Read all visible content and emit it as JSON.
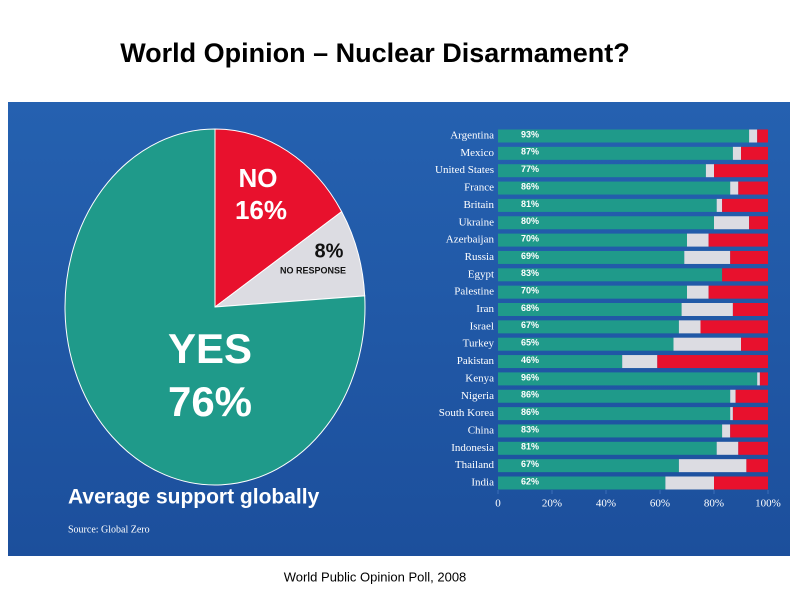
{
  "title": "World Opinion – Nuclear Disarmament?",
  "footer": "World Public Opinion Poll, 2008",
  "chart_data": [
    {
      "type": "pie",
      "title": "Average support globally",
      "source": "Source: Global Zero",
      "categories": [
        "NO",
        "NO RESPONSE",
        "YES"
      ],
      "values": [
        16,
        8,
        76
      ],
      "value_labels": [
        "16%",
        "8%",
        "76%"
      ],
      "colors": [
        "#e8112d",
        "#dcdce2",
        "#1f9a8a"
      ]
    },
    {
      "type": "stacked-barh",
      "categories": [
        "Argentina",
        "Mexico",
        "United States",
        "France",
        "Britain",
        "Ukraine",
        "Azerbaijan",
        "Russia",
        "Egypt",
        "Palestine",
        "Iran",
        "Israel",
        "Turkey",
        "Pakistan",
        "Kenya",
        "Nigeria",
        "South Korea",
        "China",
        "Indonesia",
        "Thailand",
        "India"
      ],
      "series": [
        {
          "color": "#1f9a8a",
          "values": [
            93,
            87,
            77,
            86,
            81,
            80,
            70,
            69,
            83,
            70,
            68,
            67,
            65,
            46,
            96,
            86,
            86,
            83,
            81,
            67,
            62
          ],
          "value_labels": [
            "93%",
            "87%",
            "77%",
            "86%",
            "81%",
            "80%",
            "70%",
            "69%",
            "83%",
            "70%",
            "68%",
            "67%",
            "65%",
            "46%",
            "96%",
            "86%",
            "86%",
            "83%",
            "81%",
            "67%",
            "62%"
          ]
        },
        {
          "color": "#dcdce2",
          "values": [
            3,
            3,
            3,
            3,
            2,
            13,
            8,
            17,
            0,
            8,
            19,
            8,
            25,
            13,
            1,
            2,
            1,
            3,
            8,
            25,
            18
          ]
        },
        {
          "color": "#e8112d",
          "values": [
            4,
            10,
            20,
            11,
            17,
            7,
            22,
            14,
            17,
            22,
            13,
            25,
            10,
            41,
            3,
            12,
            13,
            14,
            11,
            8,
            20
          ]
        }
      ],
      "xlim": [
        0,
        100
      ],
      "xticks": [
        0,
        {
          "value": 20,
          "label": "20%"
        },
        {
          "value": 40,
          "label": "40%"
        },
        {
          "value": 60,
          "label": "60%"
        },
        {
          "value": 80,
          "label": "80%"
        },
        {
          "value": 100,
          "label": "100%"
        }
      ]
    }
  ]
}
